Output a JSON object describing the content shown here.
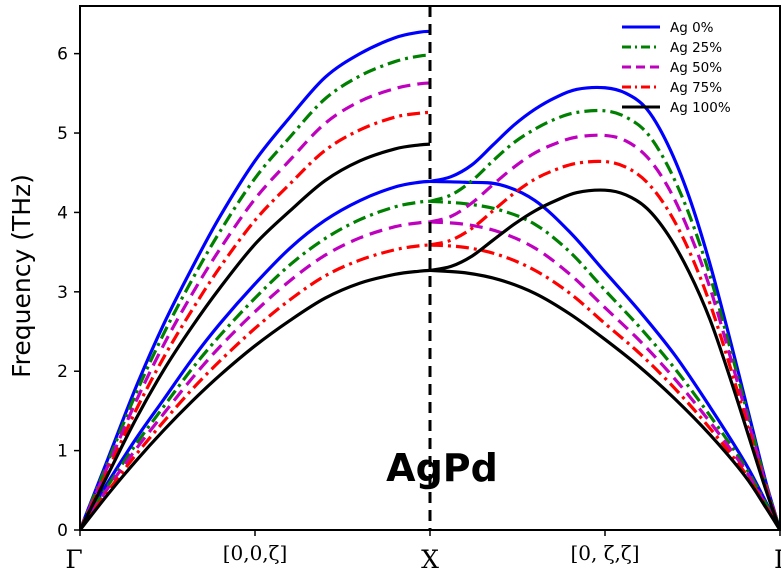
{
  "chart_data": {
    "type": "line",
    "title": "",
    "ylabel": "Frequency (THz)",
    "xlabel": "",
    "ylim": [
      0,
      6.6
    ],
    "yticks": [
      0,
      1,
      2,
      3,
      4,
      5,
      6
    ],
    "xlim": [
      0,
      2
    ],
    "xticks": [
      {
        "x": 0,
        "label": "Γ",
        "style": "main"
      },
      {
        "x": 0.5,
        "label": "[0,0,ζ]",
        "style": "path"
      },
      {
        "x": 1,
        "label": "X",
        "style": "main"
      },
      {
        "x": 1.5,
        "label": "[0, ζ,ζ]",
        "style": "path"
      },
      {
        "x": 2,
        "label": "Γ",
        "style": "main"
      }
    ],
    "vline_x": 1,
    "annotation": "AgPd",
    "legend_position": "top-right",
    "series": [
      {
        "name": "Ag  0%",
        "color": "#0000ff",
        "dash": "solid",
        "branches": [
          {
            "x": [
              0,
              0.08,
              0.16,
              0.24,
              0.32,
              0.4,
              0.5,
              0.6,
              0.7,
              0.8,
              0.9,
              0.97,
              1.0
            ],
            "y": [
              0,
              0.9,
              1.8,
              2.6,
              3.3,
              3.95,
              4.65,
              5.2,
              5.7,
              6.0,
              6.2,
              6.27,
              6.28
            ]
          },
          {
            "x": [
              0,
              0.08,
              0.16,
              0.24,
              0.32,
              0.4,
              0.5,
              0.6,
              0.7,
              0.8,
              0.9,
              0.97,
              1.0
            ],
            "y": [
              0,
              0.6,
              1.15,
              1.65,
              2.15,
              2.6,
              3.1,
              3.55,
              3.9,
              4.15,
              4.32,
              4.38,
              4.39
            ]
          },
          {
            "x": [
              1.0,
              1.1,
              1.2,
              1.3,
              1.4,
              1.5,
              1.6,
              1.7,
              1.8,
              1.9,
              1.96,
              2.0
            ],
            "y": [
              4.39,
              4.38,
              4.35,
              4.15,
              3.75,
              3.25,
              2.75,
              2.2,
              1.55,
              0.85,
              0.35,
              0
            ]
          },
          {
            "x": [
              1.0,
              1.06,
              1.12,
              1.18,
              1.24,
              1.3,
              1.36,
              1.42,
              1.5,
              1.56,
              1.62,
              1.68,
              1.74,
              1.8,
              1.86,
              1.92,
              1.96,
              2.0
            ],
            "y": [
              4.39,
              4.45,
              4.6,
              4.85,
              5.1,
              5.3,
              5.45,
              5.55,
              5.57,
              5.5,
              5.3,
              4.85,
              4.2,
              3.35,
              2.35,
              1.3,
              0.6,
              0
            ]
          }
        ]
      },
      {
        "name": "Ag  25%",
        "color": "#008000",
        "dash": "dashdot",
        "branches": [
          {
            "x": [
              0,
              0.08,
              0.16,
              0.24,
              0.32,
              0.4,
              0.5,
              0.6,
              0.7,
              0.8,
              0.9,
              0.97,
              1.0
            ],
            "y": [
              0,
              0.86,
              1.72,
              2.48,
              3.15,
              3.76,
              4.43,
              4.95,
              5.43,
              5.72,
              5.9,
              5.97,
              5.98
            ]
          },
          {
            "x": [
              0,
              0.08,
              0.16,
              0.24,
              0.32,
              0.4,
              0.5,
              0.6,
              0.7,
              0.8,
              0.9,
              0.97,
              1.0
            ],
            "y": [
              0,
              0.56,
              1.08,
              1.56,
              2.03,
              2.45,
              2.92,
              3.34,
              3.67,
              3.91,
              4.07,
              4.13,
              4.14
            ]
          },
          {
            "x": [
              1.0,
              1.1,
              1.2,
              1.3,
              1.4,
              1.5,
              1.6,
              1.7,
              1.8,
              1.9,
              1.96,
              2.0
            ],
            "y": [
              4.14,
              4.11,
              4.03,
              3.85,
              3.5,
              3.02,
              2.55,
              2.03,
              1.44,
              0.8,
              0.33,
              0
            ]
          },
          {
            "x": [
              1.0,
              1.06,
              1.12,
              1.18,
              1.24,
              1.3,
              1.36,
              1.42,
              1.5,
              1.56,
              1.62,
              1.68,
              1.74,
              1.8,
              1.86,
              1.92,
              1.96,
              2.0
            ],
            "y": [
              4.14,
              4.22,
              4.4,
              4.65,
              4.88,
              5.05,
              5.18,
              5.26,
              5.28,
              5.2,
              5.0,
              4.58,
              3.98,
              3.2,
              2.25,
              1.25,
              0.58,
              0
            ]
          }
        ]
      },
      {
        "name": "Ag  50%",
        "color": "#bf00bf",
        "dash": "dashed",
        "branches": [
          {
            "x": [
              0,
              0.08,
              0.16,
              0.24,
              0.32,
              0.4,
              0.5,
              0.6,
              0.7,
              0.8,
              0.9,
              0.97,
              1.0
            ],
            "y": [
              0,
              0.81,
              1.62,
              2.34,
              2.97,
              3.54,
              4.17,
              4.66,
              5.12,
              5.4,
              5.56,
              5.62,
              5.63
            ]
          },
          {
            "x": [
              0,
              0.08,
              0.16,
              0.24,
              0.32,
              0.4,
              0.5,
              0.6,
              0.7,
              0.8,
              0.9,
              0.97,
              1.0
            ],
            "y": [
              0,
              0.53,
              1.02,
              1.47,
              1.91,
              2.31,
              2.75,
              3.14,
              3.46,
              3.68,
              3.82,
              3.87,
              3.88
            ]
          },
          {
            "x": [
              1.0,
              1.1,
              1.2,
              1.3,
              1.4,
              1.5,
              1.6,
              1.7,
              1.8,
              1.9,
              1.96,
              2.0
            ],
            "y": [
              3.88,
              3.85,
              3.75,
              3.55,
              3.22,
              2.8,
              2.38,
              1.9,
              1.36,
              0.76,
              0.31,
              0
            ]
          },
          {
            "x": [
              1.0,
              1.06,
              1.12,
              1.18,
              1.24,
              1.3,
              1.36,
              1.42,
              1.5,
              1.56,
              1.62,
              1.68,
              1.74,
              1.8,
              1.86,
              1.92,
              1.96,
              2.0
            ],
            "y": [
              3.88,
              3.95,
              4.12,
              4.35,
              4.57,
              4.75,
              4.87,
              4.95,
              4.97,
              4.9,
              4.7,
              4.32,
              3.76,
              3.05,
              2.15,
              1.2,
              0.56,
              0
            ]
          }
        ]
      },
      {
        "name": "Ag  75%",
        "color": "#ff0000",
        "dash": "dashdot",
        "branches": [
          {
            "x": [
              0,
              0.08,
              0.16,
              0.24,
              0.32,
              0.4,
              0.5,
              0.6,
              0.7,
              0.8,
              0.9,
              0.97,
              1.0
            ],
            "y": [
              0,
              0.75,
              1.51,
              2.18,
              2.77,
              3.31,
              3.9,
              4.36,
              4.78,
              5.04,
              5.2,
              5.25,
              5.26
            ]
          },
          {
            "x": [
              0,
              0.08,
              0.16,
              0.24,
              0.32,
              0.4,
              0.5,
              0.6,
              0.7,
              0.8,
              0.9,
              0.97,
              1.0
            ],
            "y": [
              0,
              0.49,
              0.95,
              1.37,
              1.77,
              2.13,
              2.54,
              2.9,
              3.2,
              3.4,
              3.53,
              3.58,
              3.59
            ]
          },
          {
            "x": [
              1.0,
              1.1,
              1.2,
              1.3,
              1.4,
              1.5,
              1.6,
              1.7,
              1.8,
              1.9,
              1.96,
              2.0
            ],
            "y": [
              3.59,
              3.56,
              3.46,
              3.27,
              2.98,
              2.6,
              2.22,
              1.78,
              1.28,
              0.72,
              0.3,
              0
            ]
          },
          {
            "x": [
              1.0,
              1.06,
              1.12,
              1.18,
              1.24,
              1.3,
              1.36,
              1.42,
              1.5,
              1.56,
              1.62,
              1.68,
              1.74,
              1.8,
              1.86,
              1.92,
              1.96,
              2.0
            ],
            "y": [
              3.59,
              3.65,
              3.8,
              4.02,
              4.24,
              4.42,
              4.54,
              4.62,
              4.64,
              4.57,
              4.38,
              4.03,
              3.52,
              2.85,
              2.02,
              1.12,
              0.53,
              0
            ]
          }
        ]
      },
      {
        "name": "Ag  100%",
        "color": "#000000",
        "dash": "solid",
        "branches": [
          {
            "x": [
              0,
              0.08,
              0.16,
              0.24,
              0.32,
              0.4,
              0.5,
              0.6,
              0.7,
              0.8,
              0.9,
              0.97,
              1.0
            ],
            "y": [
              0,
              0.7,
              1.4,
              2.02,
              2.56,
              3.05,
              3.6,
              4.02,
              4.4,
              4.65,
              4.8,
              4.85,
              4.86
            ]
          },
          {
            "x": [
              0,
              0.08,
              0.16,
              0.24,
              0.32,
              0.4,
              0.5,
              0.6,
              0.7,
              0.8,
              0.9,
              0.97,
              1.0
            ],
            "y": [
              0,
              0.45,
              0.87,
              1.26,
              1.62,
              1.95,
              2.32,
              2.64,
              2.92,
              3.11,
              3.22,
              3.26,
              3.27
            ]
          },
          {
            "x": [
              1.0,
              1.1,
              1.2,
              1.3,
              1.4,
              1.5,
              1.6,
              1.7,
              1.8,
              1.9,
              1.96,
              2.0
            ],
            "y": [
              3.27,
              3.24,
              3.15,
              2.98,
              2.72,
              2.4,
              2.05,
              1.65,
              1.2,
              0.68,
              0.28,
              0
            ]
          },
          {
            "x": [
              1.0,
              1.06,
              1.12,
              1.18,
              1.24,
              1.3,
              1.36,
              1.42,
              1.5,
              1.56,
              1.62,
              1.68,
              1.74,
              1.8,
              1.86,
              1.92,
              1.96,
              2.0
            ],
            "y": [
              3.27,
              3.32,
              3.45,
              3.65,
              3.85,
              4.02,
              4.15,
              4.25,
              4.28,
              4.22,
              4.05,
              3.72,
              3.25,
              2.65,
              1.88,
              1.05,
              0.5,
              0
            ]
          }
        ]
      }
    ]
  }
}
